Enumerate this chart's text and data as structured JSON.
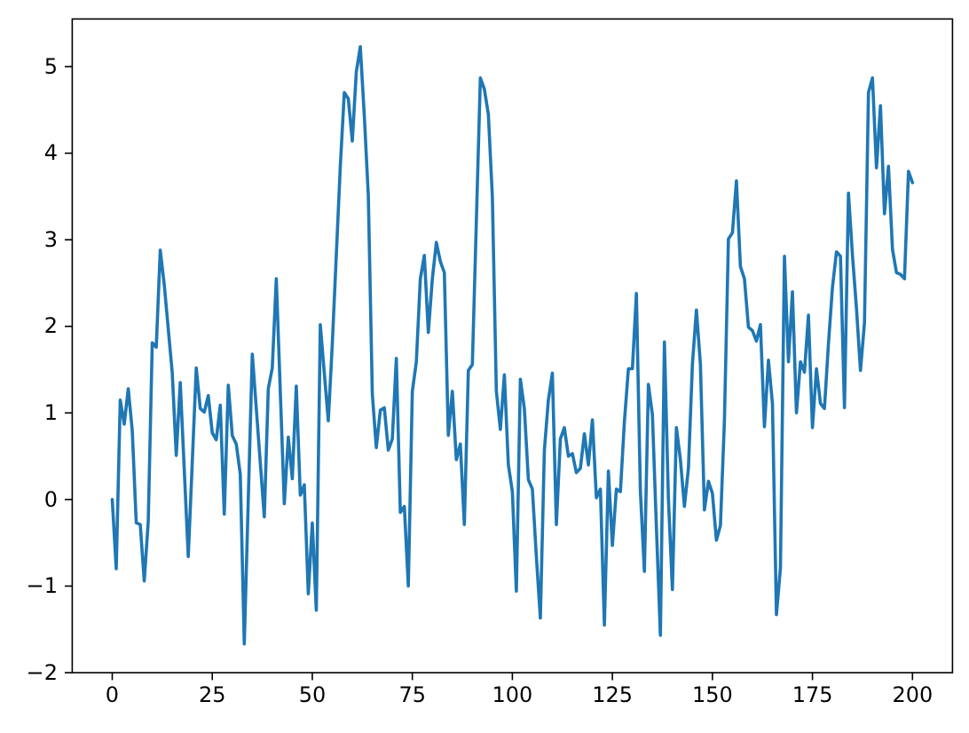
{
  "chart_data": {
    "type": "line",
    "xlim": [
      -10,
      210
    ],
    "xticks": [
      0,
      25,
      50,
      75,
      100,
      125,
      150,
      175,
      200
    ],
    "ylim": [
      -2,
      5.55
    ],
    "yticks": [
      {
        "value": -2,
        "label": "−2"
      },
      {
        "value": -1,
        "label": "−1"
      },
      0,
      1,
      2,
      3,
      4,
      5
    ],
    "marker": "none",
    "line_style": "solid",
    "series": [
      {
        "color": "#1f77b4",
        "x": [
          0,
          1,
          2,
          3,
          4,
          5,
          6,
          7,
          8,
          9,
          10,
          11,
          12,
          13,
          15,
          16,
          17,
          19,
          21,
          22,
          23,
          24,
          25,
          26,
          27,
          28,
          29,
          30,
          31,
          32,
          33,
          35,
          38,
          39,
          40,
          41,
          43,
          44,
          45,
          46,
          47,
          48,
          49,
          50,
          51,
          52,
          53,
          54,
          55,
          57,
          58,
          59,
          60,
          61,
          62,
          63,
          64,
          65,
          66,
          67,
          68,
          69,
          70,
          71,
          72,
          73,
          74,
          75,
          76,
          77,
          78,
          79,
          80,
          81,
          82,
          83,
          84,
          85,
          86,
          87,
          88,
          89,
          90,
          92,
          93,
          94,
          95,
          96,
          97,
          98,
          99,
          100,
          101,
          102,
          103,
          104,
          105,
          106,
          107,
          108,
          109,
          110,
          111,
          112,
          113,
          114,
          115,
          116,
          117,
          118,
          119,
          120,
          121,
          122,
          123,
          124,
          125,
          126,
          127,
          128,
          129,
          130,
          131,
          132,
          133,
          134,
          135,
          136,
          137,
          138,
          139,
          140,
          141,
          142,
          143,
          144,
          145,
          146,
          147,
          148,
          149,
          150,
          151,
          152,
          153,
          154,
          155,
          156,
          157,
          158,
          159,
          160,
          161,
          162,
          163,
          164,
          165,
          166,
          167,
          168,
          169,
          170,
          171,
          172,
          173,
          174,
          175,
          176,
          177,
          178,
          179,
          180,
          181,
          182,
          183,
          184,
          185,
          186,
          187,
          188,
          189,
          190,
          191,
          192,
          193,
          194,
          195,
          196,
          197,
          198,
          199,
          200
        ],
        "values": [
          0,
          -0.8,
          1.15,
          0.87,
          1.28,
          0.8,
          -0.27,
          -0.29,
          -0.94,
          -0.25,
          1.81,
          1.76,
          2.88,
          2.48,
          1.46,
          0.51,
          1.35,
          -0.66,
          1.52,
          1.05,
          1.01,
          1.2,
          0.77,
          0.69,
          1.09,
          -0.17,
          1.32,
          0.74,
          0.64,
          0.29,
          -1.67,
          1.68,
          -0.2,
          1.28,
          1.52,
          2.55,
          -0.05,
          0.72,
          0.24,
          1.31,
          0.05,
          0.17,
          -1.09,
          -0.27,
          -1.28,
          2.02,
          1.46,
          0.91,
          1.8,
          3.85,
          4.7,
          4.63,
          4.14,
          4.94,
          5.23,
          4.43,
          3.51,
          1.22,
          0.6,
          1.03,
          1.06,
          0.57,
          0.7,
          1.63,
          -0.15,
          -0.08,
          -1.0,
          1.25,
          1.59,
          2.55,
          2.82,
          1.93,
          2.55,
          2.97,
          2.75,
          2.62,
          0.74,
          1.25,
          0.46,
          0.64,
          -0.29,
          1.49,
          1.56,
          4.87,
          4.74,
          4.45,
          3.5,
          1.25,
          0.81,
          1.44,
          0.4,
          0.09,
          -1.06,
          1.39,
          1.05,
          0.23,
          0.12,
          -0.66,
          -1.37,
          0.57,
          1.15,
          1.46,
          -0.29,
          0.7,
          0.83,
          0.5,
          0.53,
          0.31,
          0.36,
          0.76,
          0.4,
          0.92,
          0.02,
          0.12,
          -1.45,
          0.33,
          -0.53,
          0.12,
          0.09,
          0.9,
          1.51,
          1.51,
          2.38,
          0.09,
          -0.83,
          1.33,
          0.98,
          -0.32,
          -1.57,
          1.82,
          0.01,
          -1.04,
          0.83,
          0.46,
          -0.08,
          0.36,
          1.56,
          2.19,
          1.56,
          -0.12,
          0.21,
          0.07,
          -0.47,
          -0.3,
          0.91,
          3.01,
          3.08,
          3.68,
          2.69,
          2.55,
          1.99,
          1.95,
          1.83,
          2.02,
          0.84,
          1.61,
          1.11,
          -1.33,
          -0.79,
          2.81,
          1.59,
          2.4,
          1.0,
          1.59,
          1.47,
          2.13,
          0.83,
          1.51,
          1.11,
          1.05,
          1.8,
          2.45,
          2.86,
          2.81,
          1.06,
          3.54,
          2.82,
          2.21,
          1.49,
          2.04,
          4.7,
          4.87,
          3.83,
          4.55,
          3.3,
          3.85,
          2.89,
          2.62,
          2.6,
          2.55,
          3.79,
          3.66
        ]
      }
    ]
  }
}
